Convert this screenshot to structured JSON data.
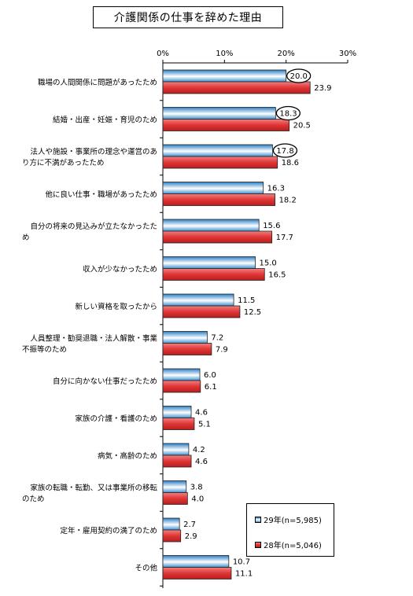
{
  "chart_data": {
    "type": "bar",
    "orientation": "horizontal",
    "title": "介護関係の仕事を辞めた理由",
    "xlim": [
      0,
      30
    ],
    "xticks": [
      "0%",
      "10%",
      "20%",
      "30%"
    ],
    "tick_values": [
      0,
      10,
      20,
      30
    ],
    "grid": false,
    "legend_position": "bottom-right",
    "categories": [
      "職場の人間関係に問題があったため",
      "結婚・出産・妊娠・育児のため",
      "法人や施設・事業所の理念や運営のあり方に不満があったため",
      "他に良い仕事・職場があったため",
      "自分の将来の見込みが立たなかったため",
      "収入が少なかったため",
      "新しい資格を取ったから",
      "人員整理・勧奨退職・法人解散・事業不振等のため",
      "自分に向かない仕事だったため",
      "家族の介護・看護のため",
      "病気・高齢のため",
      "家族の転職・転勤、又は事業所の移転のため",
      "定年・雇用契約の満了のため",
      "その他"
    ],
    "category_lines": [
      [
        "職場の人間関係に問題があったため"
      ],
      [
        "結婚・出産・妊娠・育児のため"
      ],
      [
        "法人や施設・事業所の理念や運営のあ",
        "り方に不満があったため"
      ],
      [
        "他に良い仕事・職場があったため"
      ],
      [
        "自分の将来の見込みが立たなかったた",
        "め"
      ],
      [
        "収入が少なかったため"
      ],
      [
        "新しい資格を取ったから"
      ],
      [
        "人員整理・勧奨退職・法人解散・事業",
        "不振等のため"
      ],
      [
        "自分に向かない仕事だったため"
      ],
      [
        "家族の介護・看護のため"
      ],
      [
        "病気・高齢のため"
      ],
      [
        "家族の転職・転勤、又は事業所の移転",
        "のため"
      ],
      [
        "定年・雇用契約の満了のため"
      ],
      [
        "その他"
      ]
    ],
    "series": [
      {
        "name": "29年(n=5,985)",
        "color": "#4a9fd8",
        "values": [
          20.0,
          18.3,
          17.8,
          16.3,
          15.6,
          15.0,
          11.5,
          7.2,
          6.0,
          4.6,
          4.2,
          3.8,
          2.7,
          10.7
        ],
        "value_labels": [
          "20.0",
          "18.3",
          "17.8",
          "16.3",
          "15.6",
          "15.0",
          "11.5",
          "7.2",
          "6.0",
          "4.6",
          "4.2",
          "3.8",
          "2.7",
          "10.7"
        ],
        "circled": [
          0,
          1,
          2
        ]
      },
      {
        "name": "28年(n=5,046)",
        "color": "#e04a4a",
        "values": [
          23.9,
          20.5,
          18.6,
          18.2,
          17.7,
          16.5,
          12.5,
          7.9,
          6.1,
          5.1,
          4.6,
          4.0,
          2.9,
          11.1
        ],
        "value_labels": [
          "23.9",
          "20.5",
          "18.6",
          "18.2",
          "17.7",
          "16.5",
          "12.5",
          "7.9",
          "6.1",
          "5.1",
          "4.6",
          "4.0",
          "2.9",
          "11.1"
        ]
      }
    ]
  }
}
